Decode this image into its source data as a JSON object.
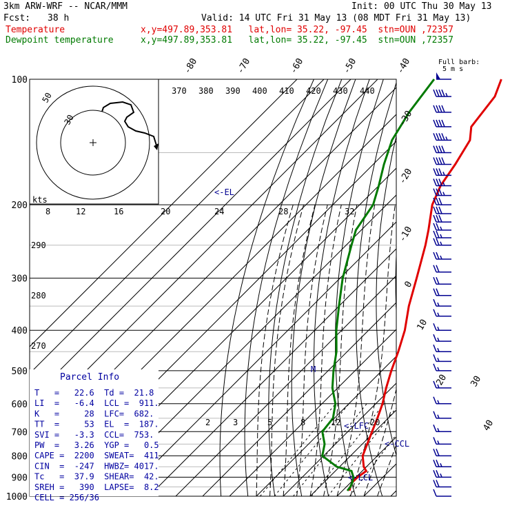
{
  "header": {
    "model": "3km ARW-WRF -- NCAR/MMM",
    "init": "Init: 00 UTC Thu 30 May 13",
    "fcst_label": "Fcst:",
    "fcst_value": "38 h",
    "valid": "Valid: 14 UTC Fri 31 May 13 (08 MDT Fri 31 May 13)",
    "temp_label": "Temperature",
    "temp_loc": "x,y=497.89,353.81   lat,lon= 35.22, -97.45  stn=OUN ,72357",
    "dew_label": "Dewpoint temperature",
    "dew_loc": "x,y=497.89,353.81   lat,lon= 35.22, -97.45  stn=OUN ,72357",
    "full_barb": "Full barb:",
    "full_barb_unit": "5 m s"
  },
  "parcel_info": {
    "title": "Parcel Info",
    "rows": [
      "T   =   22.6  Td =  21.8",
      "LI  =   -6.4  LCL =  911.",
      "K   =     28  LFC=  682.",
      "TT  =     53  EL  =  187.",
      "SVI =   -3.3  CCL=  753.",
      "PW  =   3.26  YGP =   0.5",
      "CAPE =  2200  SWEAT=  411",
      "CIN  =  -247  HWBZ= 4017.",
      "Tc   =  37.9  SHEAR=  42.",
      "SREH =   390  LAPSE=  8.2",
      "CELL = 256/36"
    ]
  },
  "markers": {
    "el": "<-EL",
    "lfc": "<-LFC",
    "ccl": "<-CCL",
    "lcl": "<-LCL",
    "m": "M"
  },
  "hodograph": {
    "units": "kts",
    "ring_labels": [
      "50",
      "30"
    ],
    "speed_labels": [
      "8",
      "12",
      "16",
      "20",
      "24",
      "28",
      "32"
    ]
  },
  "colors": {
    "temperature": "#e00000",
    "dewpoint": "#007a00",
    "barbs": "#000090"
  },
  "chart_data": {
    "type": "line",
    "title": "",
    "y_axis": {
      "label": "Pressure (hPa)",
      "scale": "log",
      "range": [
        1000,
        100
      ],
      "ticks": [
        100,
        200,
        300,
        400,
        500,
        600,
        700,
        800,
        900,
        1000
      ]
    },
    "temperature_ticks": [
      "-80",
      "-70",
      "-60",
      "-50",
      "-40",
      "-30",
      "-20",
      "-10",
      "0",
      "10",
      "20",
      "30",
      "40"
    ],
    "theta_labels": [
      "370",
      "380",
      "390",
      "400",
      "410",
      "420",
      "430",
      "440"
    ],
    "thetae_labels": [
      "290",
      "280",
      "270"
    ],
    "mixing_ratio_labels": [
      "2",
      "3",
      "5",
      "8",
      "12",
      "20"
    ],
    "series": [
      {
        "name": "Temperature",
        "units": "degC",
        "points": [
          [
            970,
            22.6
          ],
          [
            950,
            21.5
          ],
          [
            925,
            20.5
          ],
          [
            900,
            20.6
          ],
          [
            870,
            21.5
          ],
          [
            850,
            19.0
          ],
          [
            800,
            14.5
          ],
          [
            700,
            9.0
          ],
          [
            650,
            6.0
          ],
          [
            600,
            2.5
          ],
          [
            550,
            -2.0
          ],
          [
            500,
            -6.5
          ],
          [
            450,
            -11.0
          ],
          [
            400,
            -16.5
          ],
          [
            350,
            -24.0
          ],
          [
            300,
            -31.5
          ],
          [
            250,
            -40.5
          ],
          [
            230,
            -45.0
          ],
          [
            200,
            -53.0
          ],
          [
            180,
            -57.0
          ],
          [
            160,
            -59.5
          ],
          [
            140,
            -63.0
          ],
          [
            130,
            -67.5
          ],
          [
            110,
            -70.0
          ],
          [
            100,
            -74.0
          ]
        ]
      },
      {
        "name": "Dewpoint temperature",
        "units": "degC",
        "points": [
          [
            970,
            21.8
          ],
          [
            950,
            21.5
          ],
          [
            925,
            20.5
          ],
          [
            900,
            19.0
          ],
          [
            870,
            16.0
          ],
          [
            850,
            9.0
          ],
          [
            800,
            -0.5
          ],
          [
            750,
            -4.0
          ],
          [
            700,
            -9.5
          ],
          [
            650,
            -10.5
          ],
          [
            600,
            -15.0
          ],
          [
            550,
            -22.0
          ],
          [
            500,
            -28.0
          ],
          [
            450,
            -34.0
          ],
          [
            400,
            -42.0
          ],
          [
            350,
            -50.0
          ],
          [
            300,
            -59.0
          ],
          [
            250,
            -68.0
          ],
          [
            230,
            -72.0
          ],
          [
            200,
            -75.0
          ],
          [
            180,
            -80.0
          ],
          [
            160,
            -86.0
          ],
          [
            140,
            -92.0
          ],
          [
            120,
            -96.0
          ],
          [
            100,
            -99.0
          ]
        ]
      }
    ],
    "wind_barbs": [
      {
        "p": 100,
        "knots": 50
      },
      {
        "p": 110,
        "knots": 45
      },
      {
        "p": 120,
        "knots": 40
      },
      {
        "p": 130,
        "knots": 40
      },
      {
        "p": 140,
        "knots": 45
      },
      {
        "p": 150,
        "knots": 40
      },
      {
        "p": 160,
        "knots": 40
      },
      {
        "p": 170,
        "knots": 35
      },
      {
        "p": 180,
        "knots": 35
      },
      {
        "p": 190,
        "knots": 35
      },
      {
        "p": 200,
        "knots": 30
      },
      {
        "p": 210,
        "knots": 30
      },
      {
        "p": 220,
        "knots": 30
      },
      {
        "p": 230,
        "knots": 25
      },
      {
        "p": 240,
        "knots": 25
      },
      {
        "p": 250,
        "knots": 25
      },
      {
        "p": 270,
        "knots": 25
      },
      {
        "p": 290,
        "knots": 20
      },
      {
        "p": 310,
        "knots": 20
      },
      {
        "p": 330,
        "knots": 20
      },
      {
        "p": 350,
        "knots": 15
      },
      {
        "p": 370,
        "knots": 15
      },
      {
        "p": 400,
        "knots": 15
      },
      {
        "p": 425,
        "knots": 15
      },
      {
        "p": 450,
        "knots": 15
      },
      {
        "p": 475,
        "knots": 15
      },
      {
        "p": 500,
        "knots": 15
      },
      {
        "p": 550,
        "knots": 15
      },
      {
        "p": 600,
        "knots": 15
      },
      {
        "p": 650,
        "knots": 15
      },
      {
        "p": 700,
        "knots": 15
      },
      {
        "p": 750,
        "knots": 15
      },
      {
        "p": 800,
        "knots": 20
      },
      {
        "p": 850,
        "knots": 25
      },
      {
        "p": 900,
        "knots": 25
      },
      {
        "p": 950,
        "knots": 20
      },
      {
        "p": 1000,
        "knots": 10
      }
    ]
  }
}
